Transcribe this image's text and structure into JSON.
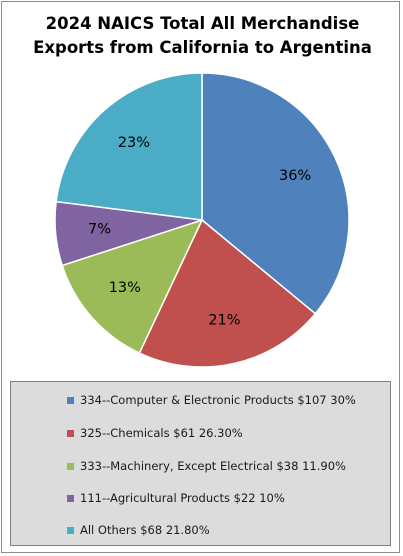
{
  "chart_data": {
    "type": "pie",
    "title": "2024 NAICS Total All Merchandise Exports from California to Argentina",
    "title_lines": [
      "2024 NAICS Total All Merchandise",
      "Exports from California to Argentina"
    ],
    "slices": [
      {
        "legend_label": "334--Computer & Electronic Products $107 30%",
        "value": 36,
        "data_label": "36%",
        "color": "#4f81bd"
      },
      {
        "legend_label": "325--Chemicals $61 26.30%",
        "value": 21,
        "data_label": "21%",
        "color": "#c0504d"
      },
      {
        "legend_label": "333--Machinery, Except Electrical $38 11.90%",
        "value": 13,
        "data_label": "13%",
        "color": "#9bbb59"
      },
      {
        "legend_label": "111--Agricultural Products $22 10%",
        "value": 7,
        "data_label": "7%",
        "color": "#8064a2"
      },
      {
        "legend_label": "All Others $68 21.80%",
        "value": 23,
        "data_label": "23%",
        "color": "#4bacc6"
      }
    ],
    "legend_position": "bottom"
  }
}
